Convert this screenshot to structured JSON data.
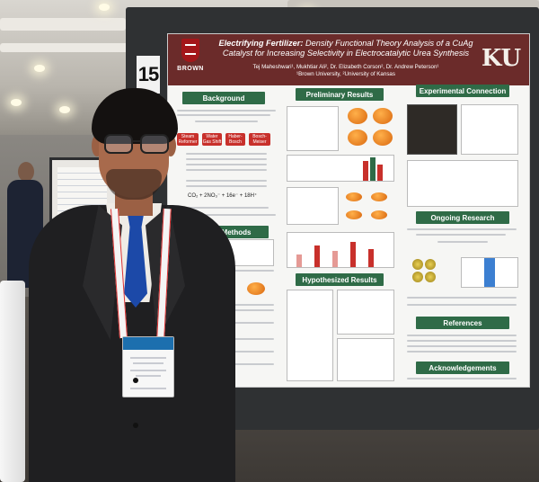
{
  "poster": {
    "board_number": "15",
    "title_italic": "Electrifying Fertilizer:",
    "title_rest": " Density Functional Theory Analysis of a CuAg Catalyst for Increasing Selectivity in Electrocatalytic Urea Synthesis",
    "authors": "Tej Maheshwari¹, Mukhtiar Ali², Dr. Elizabeth Corson², Dr. Andrew Peterson¹",
    "affiliations": "¹Brown University, ²University of Kansas",
    "logo_left": "BROWN",
    "logo_right": "KU",
    "sections": {
      "background": "Background",
      "methods": "Methods",
      "preliminary": "Preliminary Results",
      "hypothesized": "Hypothesized Results",
      "experimental": "Experimental Connection",
      "ongoing": "Ongoing Research",
      "references": "References",
      "acknowledgements": "Acknowledgements"
    },
    "background_boxes": [
      "Steam Reformer",
      "Water Gas Shift",
      "Haber-Bosch",
      "Bosch-Meiser"
    ],
    "equation": "CO₂ + 2NO₃⁻ + 16e⁻ + 18H⁺"
  },
  "colors": {
    "poster_header": "#6b2b2a",
    "section_header": "#2f6b47",
    "accent_red": "#c8302b",
    "tie": "#1c49a8",
    "jacket": "#1f1f21"
  }
}
